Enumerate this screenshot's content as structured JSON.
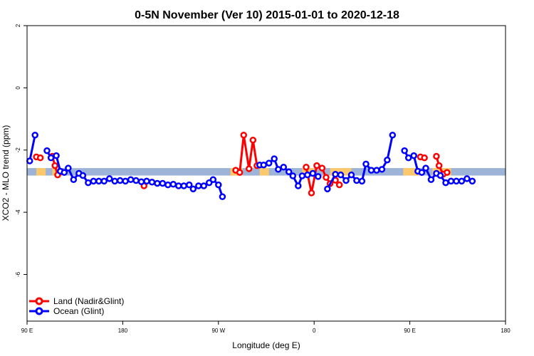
{
  "chart_data": {
    "type": "line",
    "title": "0-5N November (Ver 10)   2015-01-01 to 2020-12-18",
    "xlabel": "Longitude (deg E)",
    "ylabel": "XCO2 - MLO trend (ppm)",
    "xlim": [
      90,
      450
    ],
    "ylim": [
      -7.5,
      2.0
    ],
    "x_ticks": [
      {
        "value": 90,
        "label": "90 E"
      },
      {
        "value": 162,
        "label": "180"
      },
      {
        "value": 234,
        "label": "90 W"
      },
      {
        "value": 306,
        "label": "0"
      },
      {
        "value": 378,
        "label": "90 E"
      },
      {
        "value": 450,
        "label": "180"
      }
    ],
    "y_ticks": [
      {
        "value": 2,
        "label": "2"
      },
      {
        "value": 0,
        "label": "0"
      },
      {
        "value": -2,
        "label": "-2"
      },
      {
        "value": -4,
        "label": "-4"
      },
      {
        "value": -6,
        "label": "-6"
      }
    ],
    "band": {
      "low": -2.82,
      "high": -2.58,
      "color": "#9db4d8",
      "land_color": "#fcc86c"
    },
    "land_band_segments": [
      [
        97,
        104
      ],
      [
        109,
        113
      ],
      [
        243,
        252
      ],
      [
        265,
        272
      ],
      [
        297,
        306
      ],
      [
        318,
        334
      ],
      [
        373,
        385
      ],
      [
        395,
        409
      ]
    ],
    "legend": {
      "position": "bottom-left"
    },
    "series": [
      {
        "name": "Land (Nadir&Glint)",
        "color": "#ff0000",
        "points": [
          [
            97,
            -2.22
          ],
          [
            100,
            -2.25
          ],
          [
            109,
            -2.2
          ],
          [
            111,
            -2.5
          ],
          [
            113,
            -2.8
          ],
          [
            116,
            -2.7
          ],
          [
            178,
            -3.15
          ],
          [
            247,
            -2.65
          ],
          [
            250,
            -2.72
          ],
          [
            253,
            -1.52
          ],
          [
            257,
            -2.6
          ],
          [
            260,
            -1.68
          ],
          [
            263,
            -2.5
          ],
          [
            300,
            -2.55
          ],
          [
            304,
            -3.38
          ],
          [
            308,
            -2.5
          ],
          [
            312,
            -2.58
          ],
          [
            315,
            -2.88
          ],
          [
            318,
            -3.08
          ],
          [
            322,
            -2.97
          ],
          [
            325,
            -3.12
          ],
          [
            386,
            -2.22
          ],
          [
            389,
            -2.25
          ],
          [
            398,
            -2.2
          ],
          [
            400,
            -2.5
          ],
          [
            403,
            -2.78
          ],
          [
            406,
            -2.72
          ]
        ]
      },
      {
        "name": "Ocean (Glint)",
        "color": "#0000ff",
        "points": [
          [
            92,
            -2.35
          ],
          [
            96,
            -1.52
          ],
          [
            105,
            -2.02
          ],
          [
            108,
            -2.25
          ],
          [
            112,
            -2.18
          ],
          [
            115,
            -2.68
          ],
          [
            118,
            -2.72
          ],
          [
            121,
            -2.58
          ],
          [
            125,
            -2.95
          ],
          [
            129,
            -2.75
          ],
          [
            132,
            -2.82
          ],
          [
            136,
            -3.05
          ],
          [
            140,
            -3.0
          ],
          [
            144,
            -3.0
          ],
          [
            148,
            -3.0
          ],
          [
            152,
            -2.92
          ],
          [
            156,
            -3.0
          ],
          [
            160,
            -2.98
          ],
          [
            164,
            -3.0
          ],
          [
            168,
            -2.95
          ],
          [
            172,
            -2.98
          ],
          [
            176,
            -3.02
          ],
          [
            180,
            -3.0
          ],
          [
            184,
            -3.03
          ],
          [
            188,
            -3.07
          ],
          [
            192,
            -3.07
          ],
          [
            196,
            -3.12
          ],
          [
            200,
            -3.1
          ],
          [
            204,
            -3.15
          ],
          [
            208,
            -3.15
          ],
          [
            212,
            -3.12
          ],
          [
            215,
            -3.25
          ],
          [
            219,
            -3.15
          ],
          [
            223,
            -3.15
          ],
          [
            227,
            -3.05
          ],
          [
            230,
            -2.95
          ],
          [
            234,
            -3.12
          ],
          [
            237,
            -3.5
          ],
          [
            265,
            -2.48
          ],
          [
            268,
            -2.48
          ],
          [
            272,
            -2.42
          ],
          [
            276,
            -2.28
          ],
          [
            279,
            -2.62
          ],
          [
            283,
            -2.55
          ],
          [
            287,
            -2.7
          ],
          [
            290,
            -2.83
          ],
          [
            294,
            -3.15
          ],
          [
            297,
            -2.83
          ],
          [
            301,
            -2.8
          ],
          [
            305,
            -2.75
          ],
          [
            309,
            -2.85
          ],
          [
            316,
            -3.25
          ],
          [
            322,
            -2.78
          ],
          [
            326,
            -2.8
          ],
          [
            330,
            -2.98
          ],
          [
            334,
            -2.8
          ],
          [
            338,
            -2.98
          ],
          [
            342,
            -3.0
          ],
          [
            345,
            -2.45
          ],
          [
            349,
            -2.65
          ],
          [
            353,
            -2.65
          ],
          [
            357,
            -2.62
          ],
          [
            361,
            -2.32
          ],
          [
            365,
            -1.52
          ],
          [
            374,
            -2.02
          ],
          [
            377,
            -2.25
          ],
          [
            381,
            -2.18
          ],
          [
            384,
            -2.68
          ],
          [
            387,
            -2.72
          ],
          [
            390,
            -2.58
          ],
          [
            394,
            -2.95
          ],
          [
            398,
            -2.75
          ],
          [
            401,
            -2.82
          ],
          [
            405,
            -3.05
          ],
          [
            409,
            -3.0
          ],
          [
            413,
            -3.0
          ],
          [
            417,
            -3.0
          ],
          [
            421,
            -2.92
          ],
          [
            425,
            -3.0
          ]
        ]
      }
    ]
  }
}
